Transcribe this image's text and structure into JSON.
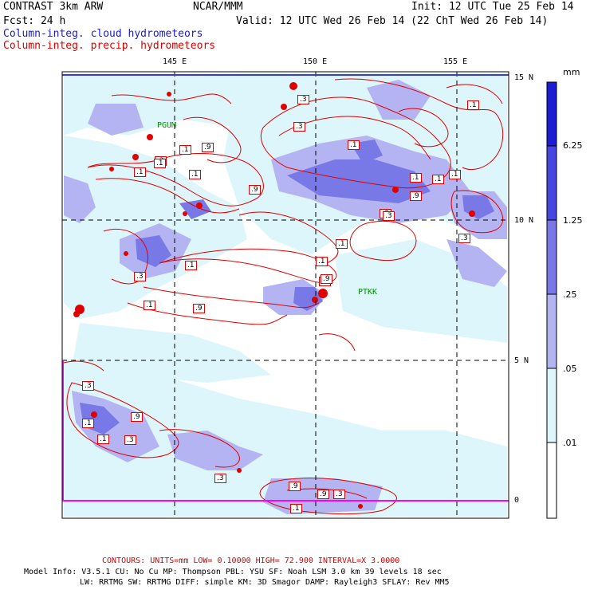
{
  "header": {
    "left1": "CONTRAST  3km ARW",
    "center1": "NCAR/MMM",
    "right1": "Init: 12 UTC Tue 25 Feb 14",
    "left2": "Fcst:   24 h",
    "right2": "Valid: 12 UTC Wed 26 Feb 14 (22 ChT Wed 26 Feb 14)",
    "legend_cloud": "Column-integ. cloud hydrometeors",
    "legend_precip": "Column-integ. precip. hydrometeors"
  },
  "map": {
    "lon_labels": [
      "145 E",
      "150 E",
      "155 E"
    ],
    "lat_labels": [
      "15 N",
      "10 N",
      "5 N",
      "0"
    ],
    "stations": [
      "PGUM",
      "PTKK"
    ],
    "contour_labels": [
      ".3",
      ".1",
      ".9",
      ".3",
      ".1",
      ".3",
      ".1",
      ".9",
      ".1",
      ".1",
      ".1",
      ".3",
      ".1",
      ".3",
      ".1",
      ".9",
      ".1",
      ".1",
      ".3",
      ".1",
      ".1",
      ".3",
      ".9",
      ".3",
      ".1",
      ".9",
      ".9",
      ".3",
      ".1",
      ".3",
      ".1",
      ".9",
      ".1",
      ".1",
      ".3",
      ".9"
    ],
    "colors": {
      "cloud_fill_light": "#dcf6fb",
      "cloud_fill_mid": "#b4b4f2",
      "cloud_fill_dark": "#7878e6",
      "precip_contour": "#e00000",
      "station_label": "#009000",
      "axis_line": "#ff00ff"
    }
  },
  "colorbar": {
    "unit": "mm",
    "labels": [
      "6.25",
      "1.25",
      ".25",
      ".05",
      ".01"
    ],
    "colors": [
      "#1c1cd4",
      "#4646e0",
      "#7878e6",
      "#b4b4f2",
      "#dcf6fb",
      "#ffffff"
    ]
  },
  "footer": {
    "contours": "CONTOURS:  UNITS=mm  LOW= 0.10000      HIGH= 72.900      INTERVAL=X  3.0000",
    "model1": "Model Info: V3.5.1    CU: No Cu     MP: Thompson     PBL: YSU      SF: Noah LSM     3.0 km   39 levels   18 sec",
    "model2": "LW: RRTMG    SW: RRTMG  DIFF: simple KM: 3D Smagor DAMP: Rayleigh3  SFLAY: Rev MM5"
  }
}
